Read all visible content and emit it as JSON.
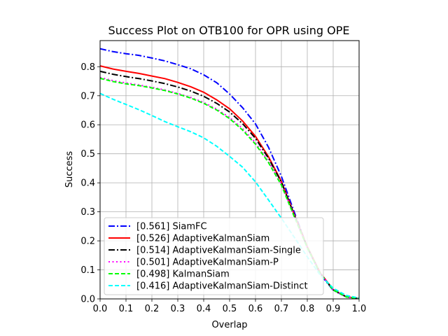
{
  "chart_data": {
    "type": "line",
    "title": "Success Plot on OTB100 for OPR using OPE",
    "xlabel": "Overlap",
    "ylabel": "Success",
    "xlim": [
      0,
      1
    ],
    "ylim": [
      0,
      0.89
    ],
    "xticks": [
      "0.0",
      "0.1",
      "0.2",
      "0.3",
      "0.4",
      "0.5",
      "0.6",
      "0.7",
      "0.8",
      "0.9",
      "1.0"
    ],
    "yticks": [
      "0.0",
      "0.1",
      "0.2",
      "0.3",
      "0.4",
      "0.5",
      "0.6",
      "0.7",
      "0.8"
    ],
    "grid": true,
    "legend_position": "lower-left",
    "x": [
      0.0,
      0.05,
      0.1,
      0.15,
      0.2,
      0.25,
      0.3,
      0.35,
      0.4,
      0.45,
      0.5,
      0.55,
      0.6,
      0.65,
      0.7,
      0.75,
      0.8,
      0.85,
      0.9,
      0.95,
      1.0
    ],
    "series": [
      {
        "name": "[0.561] SiamFC",
        "color": "#0000ff",
        "dash": "dashdot",
        "values": [
          0.862,
          0.852,
          0.845,
          0.839,
          0.83,
          0.82,
          0.807,
          0.793,
          0.772,
          0.745,
          0.706,
          0.659,
          0.603,
          0.523,
          0.422,
          0.298,
          0.178,
          0.085,
          0.03,
          0.007,
          0.001
        ]
      },
      {
        "name": "[0.526] AdaptiveKalmanSiam",
        "color": "#ff0000",
        "dash": "solid",
        "values": [
          0.803,
          0.792,
          0.784,
          0.777,
          0.768,
          0.759,
          0.746,
          0.731,
          0.712,
          0.686,
          0.655,
          0.613,
          0.56,
          0.49,
          0.405,
          0.29,
          0.18,
          0.09,
          0.032,
          0.008,
          0.001
        ]
      },
      {
        "name": "[0.514] AdaptiveKalmanSiam-Single",
        "color": "#000000",
        "dash": "dashdot",
        "values": [
          0.784,
          0.774,
          0.766,
          0.759,
          0.751,
          0.742,
          0.73,
          0.716,
          0.698,
          0.674,
          0.644,
          0.604,
          0.553,
          0.485,
          0.402,
          0.288,
          0.178,
          0.088,
          0.031,
          0.007,
          0.001
        ]
      },
      {
        "name": "[0.501] AdaptiveKalmanSiam-P",
        "color": "#ff00ff",
        "dash": "dotted",
        "values": [
          0.763,
          0.752,
          0.744,
          0.737,
          0.729,
          0.72,
          0.708,
          0.694,
          0.677,
          0.654,
          0.625,
          0.587,
          0.538,
          0.474,
          0.395,
          0.285,
          0.177,
          0.088,
          0.031,
          0.007,
          0.001
        ]
      },
      {
        "name": "[0.498] KalmanSiam",
        "color": "#00ff00",
        "dash": "dashed",
        "values": [
          0.76,
          0.749,
          0.741,
          0.735,
          0.727,
          0.718,
          0.706,
          0.692,
          0.674,
          0.651,
          0.621,
          0.582,
          0.533,
          0.47,
          0.392,
          0.283,
          0.176,
          0.087,
          0.031,
          0.007,
          0.001
        ]
      },
      {
        "name": "[0.416] AdaptiveKalmanSiam-Distinct",
        "color": "#00ffff",
        "dash": "dashed",
        "values": [
          0.708,
          0.688,
          0.67,
          0.652,
          0.632,
          0.611,
          0.593,
          0.576,
          0.555,
          0.526,
          0.491,
          0.454,
          0.403,
          0.341,
          0.278,
          0.212,
          0.145,
          0.082,
          0.037,
          0.012,
          0.003
        ]
      }
    ]
  }
}
